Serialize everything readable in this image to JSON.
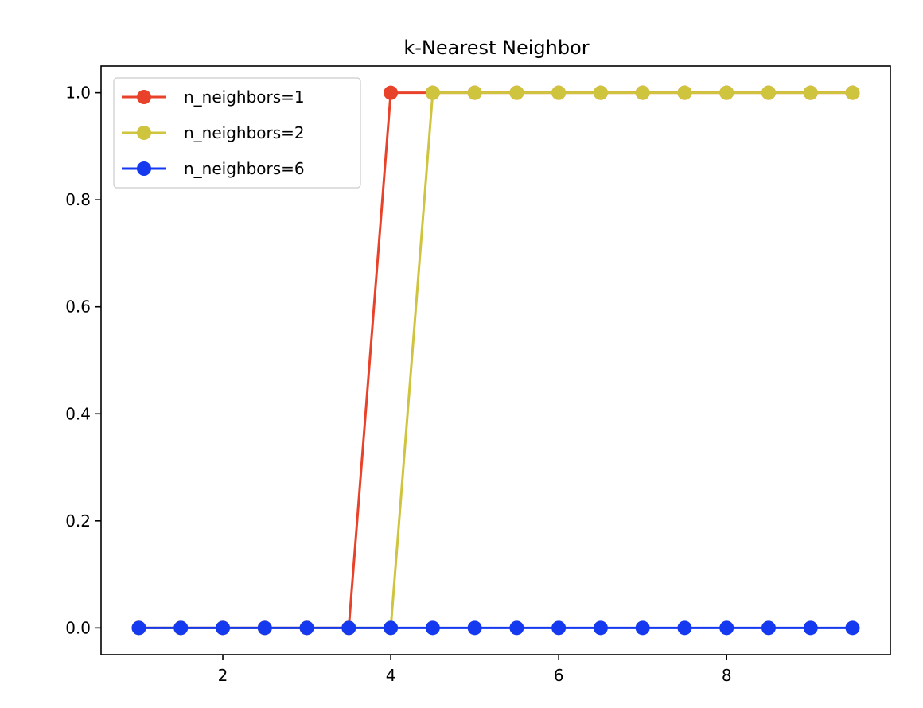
{
  "chart_data": {
    "type": "line",
    "title": "k-Nearest Neighbor",
    "xlabel": "",
    "ylabel": "",
    "xlim": [
      0.55,
      9.95
    ],
    "ylim": [
      -0.05,
      1.05
    ],
    "xticks": [
      2,
      4,
      6,
      8
    ],
    "yticks": [
      0.0,
      0.2,
      0.4,
      0.6,
      0.8,
      1.0
    ],
    "xtick_labels": [
      "2",
      "4",
      "6",
      "8"
    ],
    "ytick_labels": [
      "0.0",
      "0.2",
      "0.4",
      "0.6",
      "0.8",
      "1.0"
    ],
    "grid": false,
    "legend_position": "top-left",
    "x": [
      1.0,
      1.5,
      2.0,
      2.5,
      3.0,
      3.5,
      4.0,
      4.5,
      5.0,
      5.5,
      6.0,
      6.5,
      7.0,
      7.5,
      8.0,
      8.5,
      9.0,
      9.5
    ],
    "series": [
      {
        "name": "n_neighbors=1",
        "color": "#e8432a",
        "values": [
          0,
          0,
          0,
          0,
          0,
          0,
          1,
          1,
          1,
          1,
          1,
          1,
          1,
          1,
          1,
          1,
          1,
          1
        ]
      },
      {
        "name": "n_neighbors=2",
        "color": "#cfc43d",
        "values": [
          0,
          0,
          0,
          0,
          0,
          0,
          0,
          1,
          1,
          1,
          1,
          1,
          1,
          1,
          1,
          1,
          1,
          1
        ]
      },
      {
        "name": "n_neighbors=6",
        "color": "#1539ef",
        "values": [
          0,
          0,
          0,
          0,
          0,
          0,
          0,
          0,
          0,
          0,
          0,
          0,
          0,
          0,
          0,
          0,
          0,
          0
        ]
      }
    ]
  }
}
